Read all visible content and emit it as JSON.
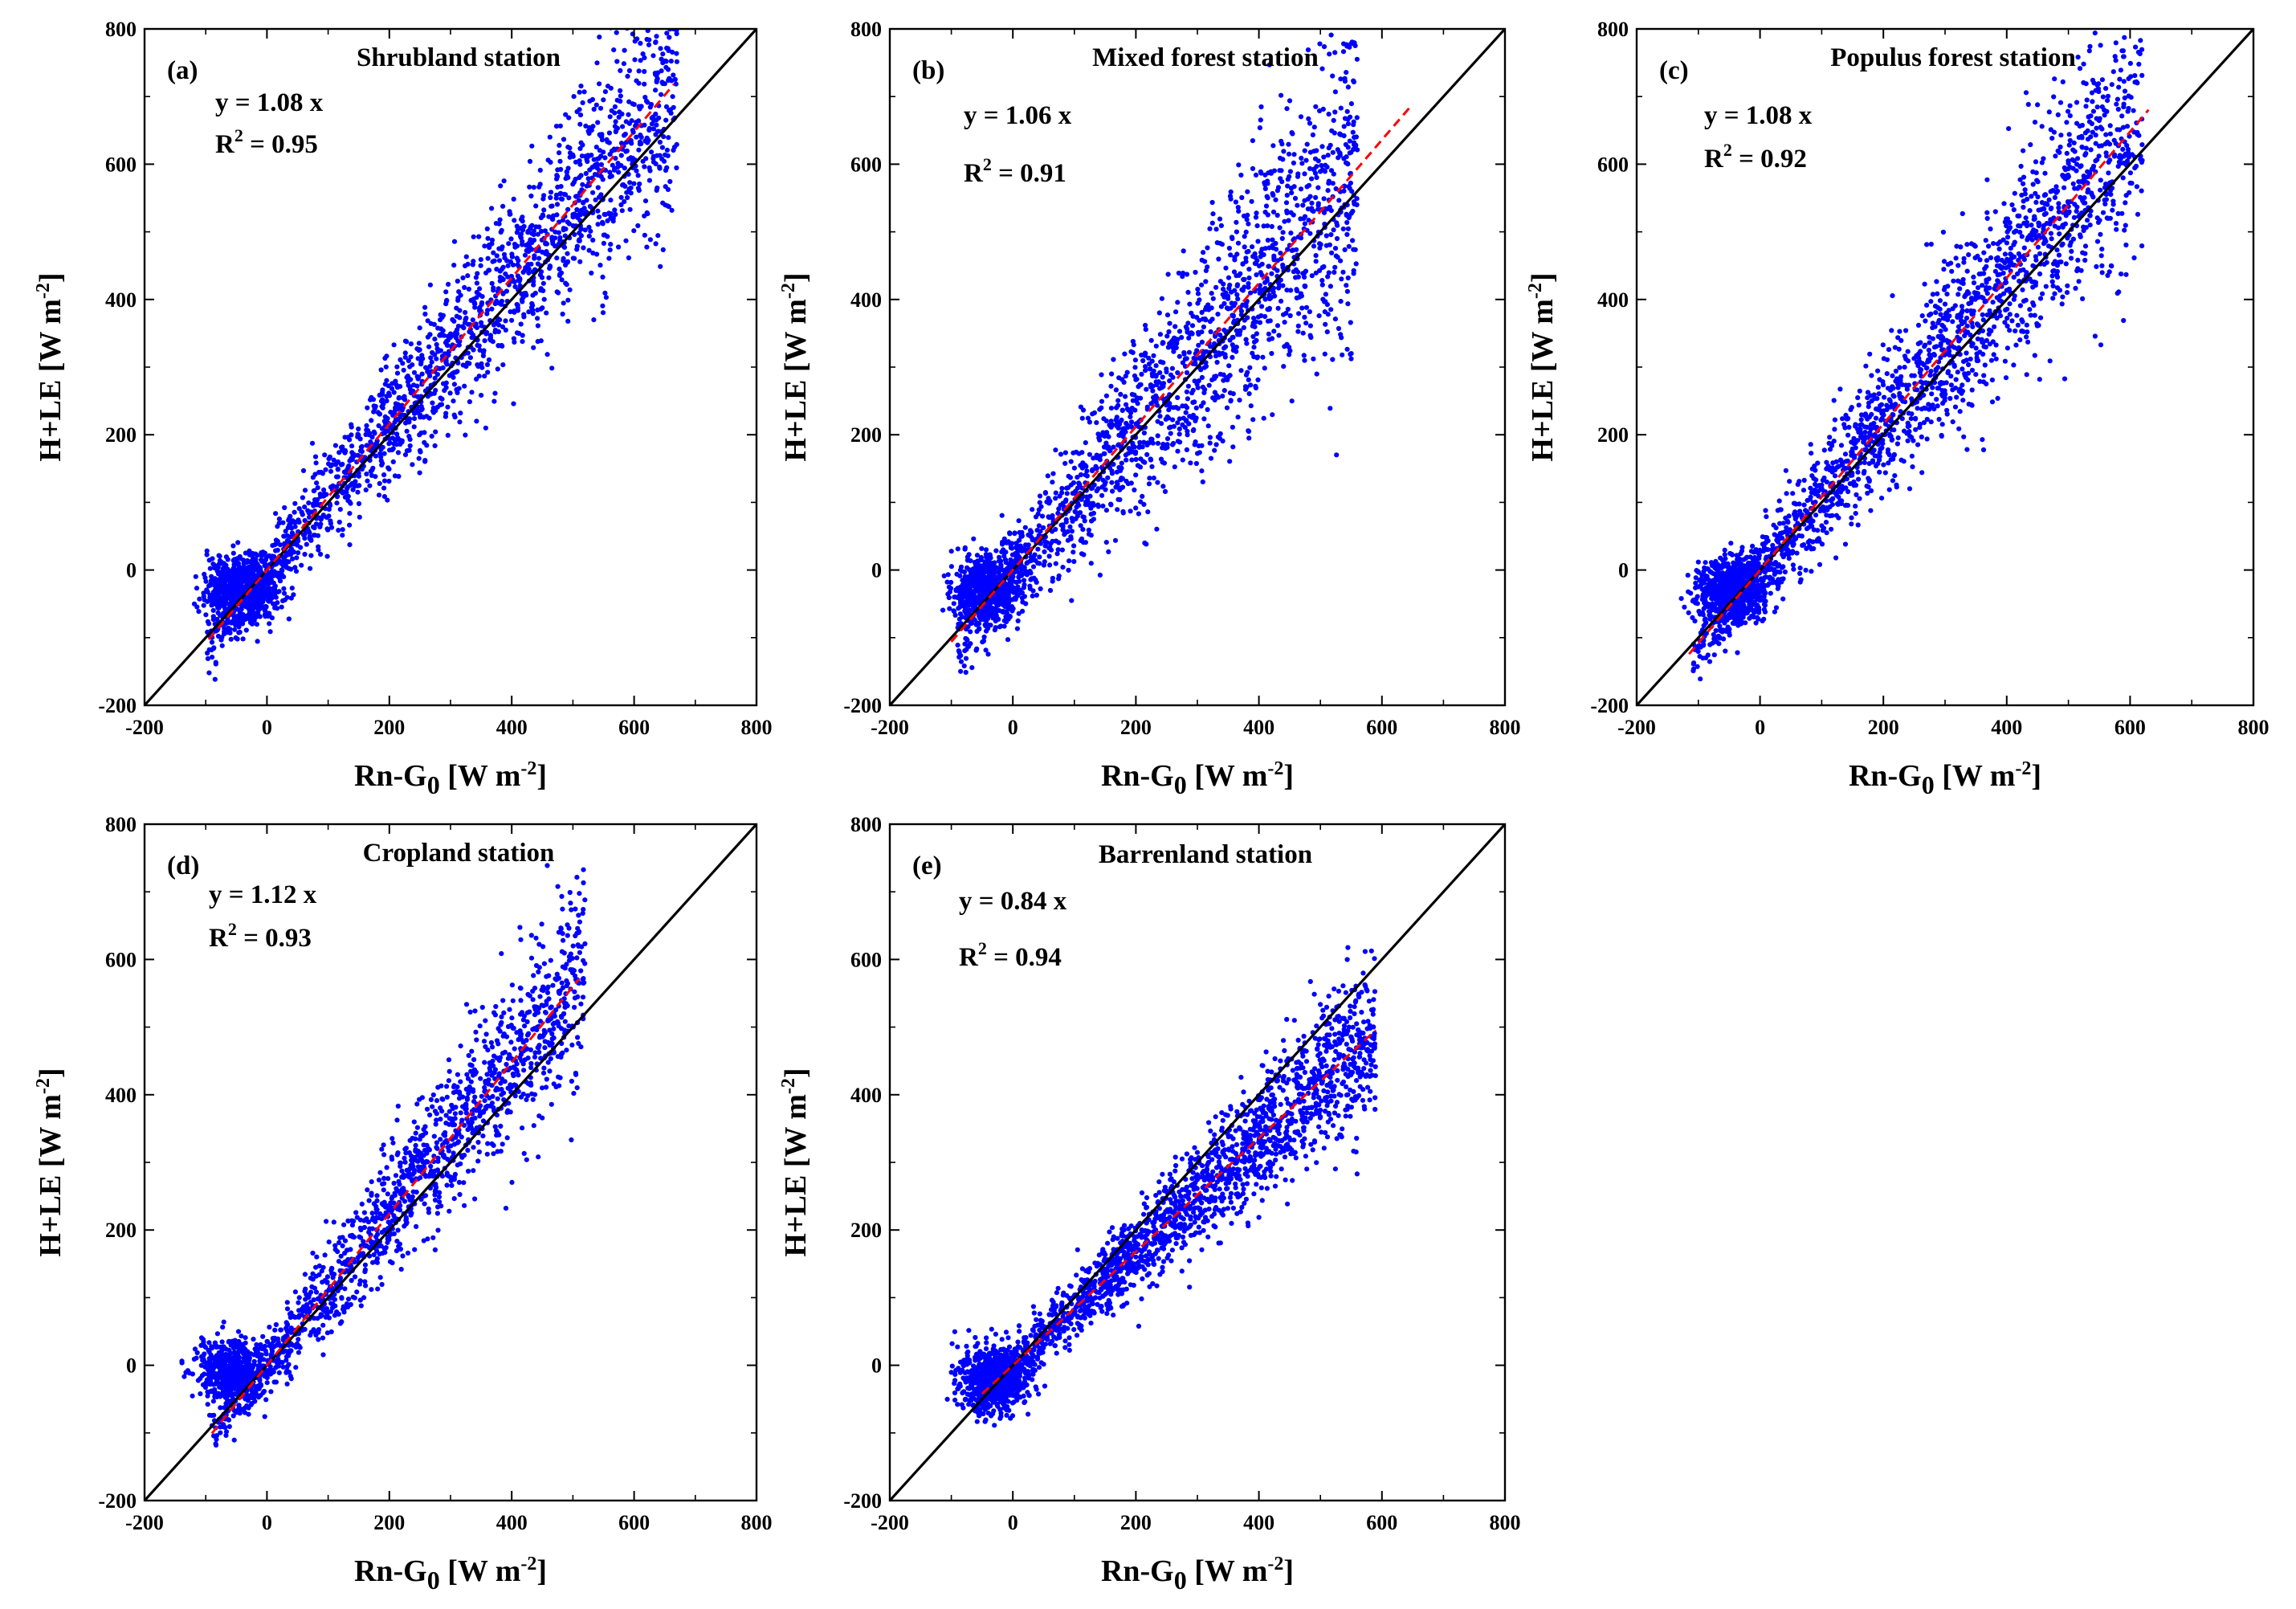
{
  "figure": {
    "point_color": "#0000ff",
    "identity_line_color": "#000000",
    "fit_line_color": "#ff0000"
  },
  "chart_data": [
    {
      "type": "scatter",
      "panel_label": "(a)",
      "title": "Shrubland station",
      "xlabel": "Rn-G0 [W m-2]",
      "ylabel": "H+LE [W m-2]",
      "xlabel_parts": {
        "main": "Rn-G",
        "sub": "0",
        "unit_open": " [W m",
        "unit_sup": "-2",
        "unit_close": "]"
      },
      "ylabel_parts": {
        "main": "H+LE [W m",
        "sup": "-2",
        "close": "]"
      },
      "xlim": [
        -200,
        800
      ],
      "ylim": [
        -200,
        800
      ],
      "xticks": [
        "-200",
        "0",
        "200",
        "400",
        "600",
        "800"
      ],
      "yticks": [
        "-200",
        "0",
        "200",
        "400",
        "600",
        "800"
      ],
      "equation": "y = 1.08 x",
      "r2_prefix": "R",
      "r2_sup": "2",
      "r2_suffix": " = 0.95",
      "slope": 1.08,
      "fit_range": [
        -95,
        665
      ],
      "scatter": {
        "x_min": -100,
        "x_max": 670,
        "n": 2600,
        "noise": 58,
        "cluster_x": -40,
        "cluster_y": -30
      },
      "series": [
        {
          "values": "identity line y = x"
        },
        {
          "values": "fitted line y = 1.08 x"
        }
      ]
    },
    {
      "type": "scatter",
      "panel_label": "(b)",
      "title": "Mixed forest station",
      "xlabel": "Rn-G0 [W m-2]",
      "ylabel": "H+LE [W m-2]",
      "xlabel_parts": {
        "main": "Rn-G",
        "sub": "0",
        "unit_open": " [W m",
        "unit_sup": "-2",
        "unit_close": "]"
      },
      "ylabel_parts": {
        "main": "H+LE [W m",
        "sup": "-2",
        "close": "]"
      },
      "xlim": [
        -200,
        800
      ],
      "ylim": [
        -200,
        800
      ],
      "xticks": [
        "-200",
        "0",
        "200",
        "400",
        "600",
        "800"
      ],
      "yticks": [
        "-200",
        "0",
        "200",
        "400",
        "600",
        "800"
      ],
      "equation": "y = 1.06 x",
      "r2_prefix": "R",
      "r2_sup": "2",
      "r2_suffix": " = 0.91",
      "slope": 1.06,
      "fit_range": [
        -100,
        650
      ],
      "scatter": {
        "x_min": -90,
        "x_max": 560,
        "n": 2400,
        "noise": 75,
        "cluster_x": -45,
        "cluster_y": -30
      },
      "series": [
        {
          "values": "identity line y = x"
        },
        {
          "values": "fitted line y = 1.06 x"
        }
      ]
    },
    {
      "type": "scatter",
      "panel_label": "(c)",
      "title": "Populus forest station",
      "xlabel": "Rn-G0 [W m-2]",
      "ylabel": "H+LE [W m-2]",
      "xlabel_parts": {
        "main": "Rn-G",
        "sub": "0",
        "unit_open": " [W m",
        "unit_sup": "-2",
        "unit_close": "]"
      },
      "ylabel_parts": {
        "main": "H+LE [W m",
        "sup": "-2",
        "close": "]"
      },
      "xlim": [
        -200,
        800
      ],
      "ylim": [
        -200,
        800
      ],
      "xticks": [
        "-200",
        "0",
        "200",
        "400",
        "600",
        "800"
      ],
      "yticks": [
        "-200",
        "0",
        "200",
        "400",
        "600",
        "800"
      ],
      "equation": "y = 1.08 x",
      "r2_prefix": "R",
      "r2_sup": "2",
      "r2_suffix": " = 0.92",
      "slope": 1.08,
      "fit_range": [
        -115,
        630
      ],
      "scatter": {
        "x_min": -110,
        "x_max": 620,
        "n": 2600,
        "noise": 65,
        "cluster_x": -45,
        "cluster_y": -30
      },
      "series": [
        {
          "values": "identity line y = x"
        },
        {
          "values": "fitted line y = 1.08 x"
        }
      ]
    },
    {
      "type": "scatter",
      "panel_label": "(d)",
      "title": "Cropland station",
      "xlabel": "Rn-G0 [W m-2]",
      "ylabel": "H+LE [W m-2]",
      "xlabel_parts": {
        "main": "Rn-G",
        "sub": "0",
        "unit_open": " [W m",
        "unit_sup": "-2",
        "unit_close": "]"
      },
      "ylabel_parts": {
        "main": "H+LE [W m",
        "sup": "-2",
        "close": "]"
      },
      "xlim": [
        -200,
        800
      ],
      "ylim": [
        -200,
        800
      ],
      "xticks": [
        "-200",
        "0",
        "200",
        "400",
        "600",
        "800"
      ],
      "yticks": [
        "-200",
        "0",
        "200",
        "400",
        "600",
        "800"
      ],
      "equation": "y = 1.12 x",
      "r2_prefix": "R",
      "r2_sup": "2",
      "r2_suffix": " = 0.93",
      "slope": 1.12,
      "fit_range": [
        -90,
        510
      ],
      "scatter": {
        "x_min": -90,
        "x_max": 520,
        "n": 2000,
        "noise": 50,
        "cluster_x": -60,
        "cluster_y": -10
      },
      "series": [
        {
          "values": "identity line y = x"
        },
        {
          "values": "fitted line y = 1.12 x"
        }
      ]
    },
    {
      "type": "scatter",
      "panel_label": "(e)",
      "title": "Barrenland station",
      "xlabel": "Rn-G0 [W m-2]",
      "ylabel": "H+LE [W m-2]",
      "xlabel_parts": {
        "main": "Rn-G",
        "sub": "0",
        "unit_open": " [W m",
        "unit_sup": "-2",
        "unit_close": "]"
      },
      "ylabel_parts": {
        "main": "H+LE [W m",
        "sup": "-2",
        "close": "]"
      },
      "xlim": [
        -200,
        800
      ],
      "ylim": [
        -200,
        800
      ],
      "xticks": [
        "-200",
        "0",
        "200",
        "400",
        "600",
        "800"
      ],
      "yticks": [
        "-200",
        "0",
        "200",
        "400",
        "600",
        "800"
      ],
      "equation": "y = 0.84 x",
      "r2_prefix": "R",
      "r2_sup": "2",
      "r2_suffix": " = 0.94",
      "slope": 0.84,
      "fit_range": [
        -50,
        590
      ],
      "scatter": {
        "x_min": -60,
        "x_max": 590,
        "n": 2600,
        "noise": 38,
        "cluster_x": -30,
        "cluster_y": -20
      },
      "series": [
        {
          "values": "identity line y = x"
        },
        {
          "values": "fitted line y = 0.84 x"
        }
      ]
    }
  ]
}
